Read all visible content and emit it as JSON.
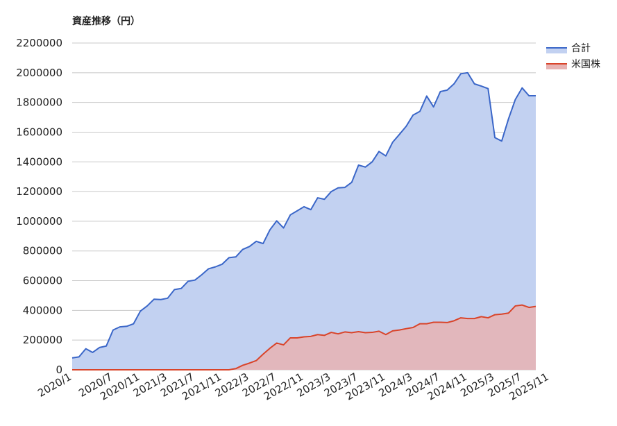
{
  "chart_data": {
    "type": "area",
    "title": "資産推移（円）",
    "xlabel": "",
    "ylabel": "",
    "ylim": [
      0,
      2200000
    ],
    "yticks": [
      "0",
      "200000",
      "400000",
      "600000",
      "800000",
      "1000000",
      "1200000",
      "1400000",
      "1600000",
      "1800000",
      "2000000",
      "2200000"
    ],
    "xtick_labels": [
      "2020/1",
      "2020/7",
      "2020/11",
      "2021/3",
      "2021/7",
      "2021/11",
      "2022/3",
      "2022/7",
      "2022/11",
      "2023/3",
      "2023/7",
      "2023/11",
      "2024/3",
      "2024/7",
      "2024/11",
      "2025/3",
      "2025/7",
      "2025/11"
    ],
    "grid": true,
    "legend_position": "top-right",
    "series": [
      {
        "name": "合計",
        "color": "#3a66c8",
        "fill": "#c2d1f1",
        "values": [
          80000,
          87000,
          142000,
          117000,
          150000,
          160000,
          268000,
          289000,
          293000,
          310000,
          395000,
          430000,
          475000,
          473000,
          482000,
          540000,
          548000,
          596000,
          604000,
          640000,
          680000,
          693000,
          711000,
          755000,
          760000,
          810000,
          830000,
          865000,
          850000,
          942000,
          1003000,
          955000,
          1043000,
          1070000,
          1098000,
          1078000,
          1158000,
          1148000,
          1200000,
          1225000,
          1228000,
          1262000,
          1378000,
          1365000,
          1400000,
          1470000,
          1440000,
          1532000,
          1585000,
          1640000,
          1715000,
          1740000,
          1843000,
          1770000,
          1873000,
          1883000,
          1925000,
          1993000,
          2000000,
          1925000,
          1910000,
          1893000,
          1563000,
          1540000,
          1690000,
          1820000,
          1898000,
          1845000,
          1845000
        ]
      },
      {
        "name": "米国株",
        "color": "#d9442a",
        "fill": "#e7b3b3",
        "values": [
          0,
          0,
          0,
          0,
          0,
          0,
          0,
          0,
          0,
          0,
          0,
          0,
          0,
          0,
          0,
          0,
          0,
          0,
          0,
          0,
          0,
          0,
          0,
          0,
          8000,
          30000,
          45000,
          62000,
          105000,
          145000,
          180000,
          168000,
          215000,
          215000,
          222000,
          225000,
          237000,
          232000,
          252000,
          242000,
          255000,
          250000,
          257000,
          250000,
          252000,
          260000,
          237000,
          262000,
          268000,
          277000,
          285000,
          310000,
          310000,
          320000,
          320000,
          318000,
          330000,
          350000,
          345000,
          345000,
          358000,
          350000,
          371000,
          375000,
          382000,
          430000,
          436000,
          420000,
          427000
        ]
      }
    ]
  }
}
